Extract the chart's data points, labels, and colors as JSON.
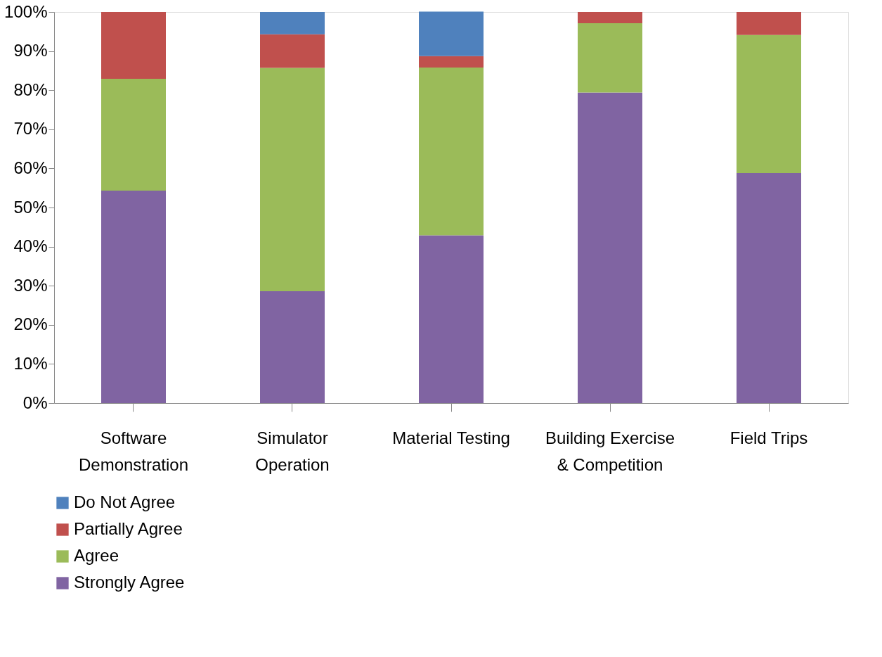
{
  "chart_data": {
    "type": "bar",
    "stacked": true,
    "categories": [
      "Software Demonstration",
      "Simulator Operation",
      "Material Testing",
      "Building Exercise & Competition",
      "Field Trips"
    ],
    "series": [
      {
        "name": "Strongly Agree",
        "color": "#8064a2",
        "values": [
          54.3,
          28.6,
          42.9,
          79.4,
          58.8
        ]
      },
      {
        "name": "Agree",
        "color": "#9bbb59",
        "values": [
          28.6,
          57.1,
          42.9,
          17.7,
          35.3
        ]
      },
      {
        "name": "Partially Agree",
        "color": "#c0504d",
        "values": [
          17.1,
          8.6,
          2.9,
          2.9,
          5.9
        ]
      },
      {
        "name": "Do Not Agree",
        "color": "#4f81bd",
        "values": [
          0,
          5.7,
          11.4,
          0,
          0
        ]
      }
    ],
    "ylim": [
      0,
      100
    ],
    "yticks": [
      {
        "value": 0,
        "label": "0%"
      },
      {
        "value": 10,
        "label": "10%"
      },
      {
        "value": 20,
        "label": "20%"
      },
      {
        "value": 30,
        "label": "30%"
      },
      {
        "value": 40,
        "label": "40%"
      },
      {
        "value": 50,
        "label": "50%"
      },
      {
        "value": 60,
        "label": "60%"
      },
      {
        "value": 70,
        "label": "70%"
      },
      {
        "value": 80,
        "label": "80%"
      },
      {
        "value": 90,
        "label": "90%"
      },
      {
        "value": 100,
        "label": "100%"
      }
    ],
    "grid": false,
    "legend": "bottom"
  }
}
